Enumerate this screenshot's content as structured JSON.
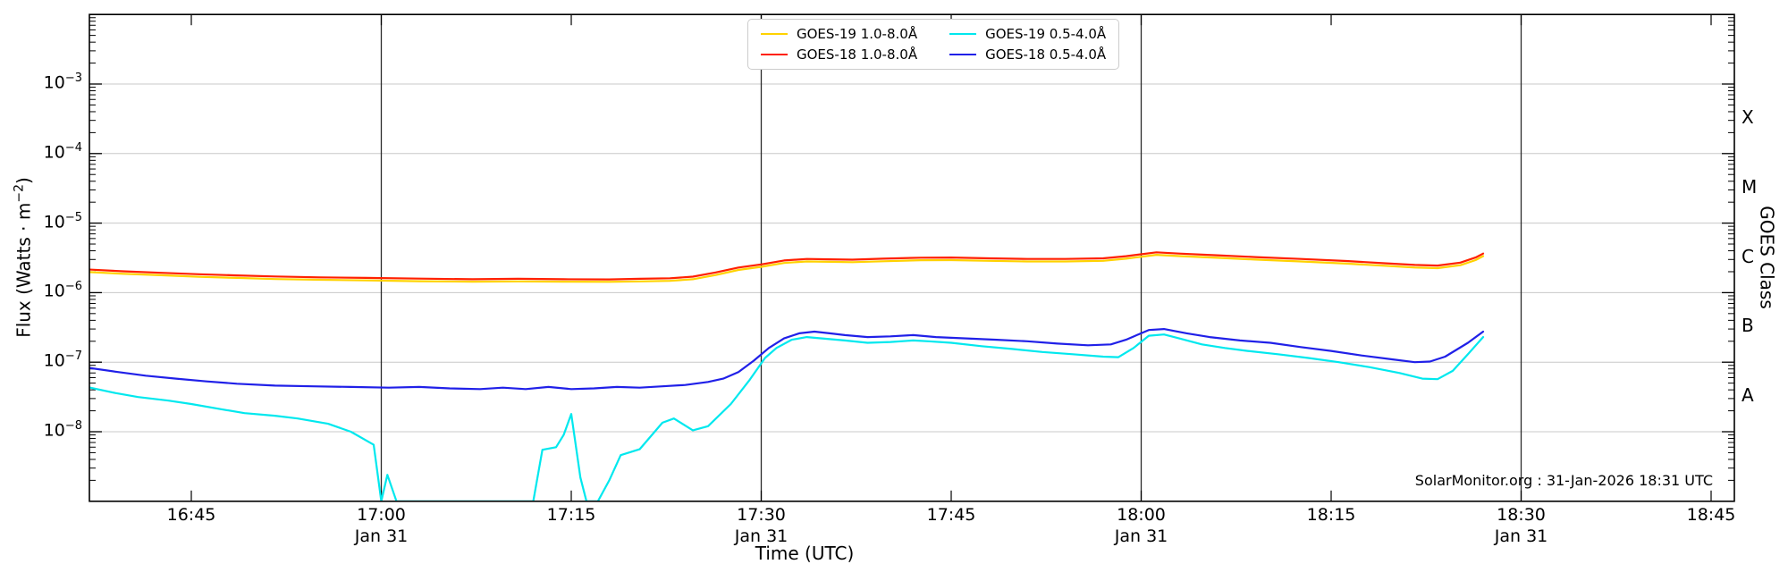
{
  "watermark": "SolarMonitor.org : 31-Jan-2026 18:31 UTC",
  "chart_data": {
    "type": "line",
    "title": "",
    "xlabel": "Time (UTC)",
    "ylabel": {
      "prefix": "Flux (Watts · m",
      "sup": "−2",
      "suffix": ")"
    },
    "ylabel_right": "GOES Class",
    "x_axis": {
      "unit": "UTC time, decimal hours",
      "min": 16.6159,
      "max": 18.7806,
      "ticks": [
        {
          "t": 16.75,
          "label": "16:45"
        },
        {
          "t": 17.0,
          "label": "17:00",
          "sub": "Jan 31"
        },
        {
          "t": 17.25,
          "label": "17:15"
        },
        {
          "t": 17.5,
          "label": "17:30",
          "sub": "Jan 31"
        },
        {
          "t": 17.75,
          "label": "17:45"
        },
        {
          "t": 18.0,
          "label": "18:00",
          "sub": "Jan 31"
        },
        {
          "t": 18.25,
          "label": "18:15"
        },
        {
          "t": 18.5,
          "label": "18:30",
          "sub": "Jan 31"
        },
        {
          "t": 18.75,
          "label": "18:45"
        }
      ]
    },
    "y_axis": {
      "scale": "log",
      "min": 1e-09,
      "max": 0.01,
      "tick_exponents": [
        -3,
        -4,
        -5,
        -6,
        -7,
        -8
      ],
      "grid": true
    },
    "right_axis": {
      "label": "GOES Class",
      "classes": [
        {
          "label": "X",
          "exp": -3.5
        },
        {
          "label": "M",
          "exp": -4.5
        },
        {
          "label": "C",
          "exp": -5.5
        },
        {
          "label": "B",
          "exp": -6.5
        },
        {
          "label": "A",
          "exp": -7.5
        }
      ]
    },
    "day_markers": {
      "times": [
        17.0,
        17.5,
        18.0,
        18.5
      ],
      "label": "Jan 31"
    },
    "colors": {
      "grid": "#c8c8c8",
      "day_marker": "#2b2b2b",
      "axis": "#000000"
    },
    "legend_position": "top-center",
    "series": [
      {
        "id": "goes19-long",
        "label": "GOES-19 1.0-8.0Å",
        "color": "#ffd200",
        "points": [
          [
            16.615,
            1.98e-06
          ],
          [
            16.66,
            1.87e-06
          ],
          [
            16.71,
            1.78e-06
          ],
          [
            16.76,
            1.69e-06
          ],
          [
            16.81,
            1.63e-06
          ],
          [
            16.86,
            1.57e-06
          ],
          [
            16.92,
            1.53e-06
          ],
          [
            16.98,
            1.5e-06
          ],
          [
            17.05,
            1.46e-06
          ],
          [
            17.12,
            1.44e-06
          ],
          [
            17.18,
            1.45e-06
          ],
          [
            17.24,
            1.44e-06
          ],
          [
            17.3,
            1.43e-06
          ],
          [
            17.34,
            1.45e-06
          ],
          [
            17.38,
            1.48e-06
          ],
          [
            17.41,
            1.56e-06
          ],
          [
            17.44,
            1.79e-06
          ],
          [
            17.47,
            2.12e-06
          ],
          [
            17.5,
            2.35e-06
          ],
          [
            17.53,
            2.67e-06
          ],
          [
            17.56,
            2.81e-06
          ],
          [
            17.59,
            2.78e-06
          ],
          [
            17.62,
            2.74e-06
          ],
          [
            17.66,
            2.83e-06
          ],
          [
            17.71,
            2.93e-06
          ],
          [
            17.75,
            2.94e-06
          ],
          [
            17.8,
            2.87e-06
          ],
          [
            17.85,
            2.81e-06
          ],
          [
            17.9,
            2.81e-06
          ],
          [
            17.95,
            2.87e-06
          ],
          [
            17.98,
            3.08e-06
          ],
          [
            18.02,
            3.5e-06
          ],
          [
            18.05,
            3.36e-06
          ],
          [
            18.1,
            3.17e-06
          ],
          [
            18.15,
            2.99e-06
          ],
          [
            18.21,
            2.81e-06
          ],
          [
            18.27,
            2.62e-06
          ],
          [
            18.32,
            2.44e-06
          ],
          [
            18.36,
            2.3e-06
          ],
          [
            18.39,
            2.25e-06
          ],
          [
            18.42,
            2.48e-06
          ],
          [
            18.44,
            2.94e-06
          ],
          [
            18.45,
            3.36e-06
          ]
        ]
      },
      {
        "id": "goes18-long",
        "label": "GOES-18 1.0-8.0Å",
        "color": "#ff2000",
        "points": [
          [
            16.615,
            2.15e-06
          ],
          [
            16.66,
            2.03e-06
          ],
          [
            16.71,
            1.93e-06
          ],
          [
            16.76,
            1.84e-06
          ],
          [
            16.81,
            1.77e-06
          ],
          [
            16.86,
            1.71e-06
          ],
          [
            16.92,
            1.66e-06
          ],
          [
            16.98,
            1.63e-06
          ],
          [
            17.05,
            1.59e-06
          ],
          [
            17.12,
            1.56e-06
          ],
          [
            17.18,
            1.58e-06
          ],
          [
            17.24,
            1.56e-06
          ],
          [
            17.3,
            1.55e-06
          ],
          [
            17.34,
            1.58e-06
          ],
          [
            17.38,
            1.61e-06
          ],
          [
            17.41,
            1.7e-06
          ],
          [
            17.44,
            1.95e-06
          ],
          [
            17.47,
            2.3e-06
          ],
          [
            17.5,
            2.55e-06
          ],
          [
            17.53,
            2.9e-06
          ],
          [
            17.56,
            3.05e-06
          ],
          [
            17.59,
            3.02e-06
          ],
          [
            17.62,
            2.98e-06
          ],
          [
            17.66,
            3.08e-06
          ],
          [
            17.71,
            3.18e-06
          ],
          [
            17.75,
            3.2e-06
          ],
          [
            17.8,
            3.12e-06
          ],
          [
            17.85,
            3.05e-06
          ],
          [
            17.9,
            3.05e-06
          ],
          [
            17.95,
            3.12e-06
          ],
          [
            17.98,
            3.35e-06
          ],
          [
            18.02,
            3.8e-06
          ],
          [
            18.05,
            3.65e-06
          ],
          [
            18.1,
            3.45e-06
          ],
          [
            18.15,
            3.25e-06
          ],
          [
            18.21,
            3.05e-06
          ],
          [
            18.27,
            2.85e-06
          ],
          [
            18.32,
            2.65e-06
          ],
          [
            18.36,
            2.5e-06
          ],
          [
            18.39,
            2.45e-06
          ],
          [
            18.42,
            2.7e-06
          ],
          [
            18.44,
            3.2e-06
          ],
          [
            18.45,
            3.65e-06
          ]
        ]
      },
      {
        "id": "goes19-short",
        "label": "GOES-19 0.5-4.0Å",
        "color": "#00e8ee",
        "points": [
          [
            16.615,
            4.35e-08
          ],
          [
            16.65,
            3.6e-08
          ],
          [
            16.68,
            3.15e-08
          ],
          [
            16.72,
            2.8e-08
          ],
          [
            16.75,
            2.5e-08
          ],
          [
            16.79,
            2.1e-08
          ],
          [
            16.82,
            1.85e-08
          ],
          [
            16.86,
            1.7e-08
          ],
          [
            16.89,
            1.55e-08
          ],
          [
            16.93,
            1.3e-08
          ],
          [
            16.96,
            1e-08
          ],
          [
            16.99,
            6.5e-09
          ],
          [
            17.0,
            1e-09
          ],
          [
            17.008,
            2.4e-09
          ],
          [
            17.02,
            1e-09
          ],
          [
            17.06,
            1e-09
          ],
          [
            17.12,
            1e-09
          ],
          [
            17.2,
            1e-09
          ],
          [
            17.212,
            5.5e-09
          ],
          [
            17.23,
            6e-09
          ],
          [
            17.24,
            9e-09
          ],
          [
            17.25,
            1.8e-08
          ],
          [
            17.262,
            2.2e-09
          ],
          [
            17.27,
            1e-09
          ],
          [
            17.285,
            1e-09
          ],
          [
            17.3,
            2e-09
          ],
          [
            17.315,
            4.6e-09
          ],
          [
            17.34,
            5.6e-09
          ],
          [
            17.37,
            1.35e-08
          ],
          [
            17.385,
            1.55e-08
          ],
          [
            17.41,
            1.05e-08
          ],
          [
            17.43,
            1.2e-08
          ],
          [
            17.46,
            2.5e-08
          ],
          [
            17.485,
            5.6e-08
          ],
          [
            17.505,
            1.15e-07
          ],
          [
            17.52,
            1.6e-07
          ],
          [
            17.54,
            2.1e-07
          ],
          [
            17.56,
            2.3e-07
          ],
          [
            17.58,
            2.2e-07
          ],
          [
            17.61,
            2.05e-07
          ],
          [
            17.64,
            1.9e-07
          ],
          [
            17.67,
            1.95e-07
          ],
          [
            17.7,
            2.05e-07
          ],
          [
            17.72,
            2e-07
          ],
          [
            17.75,
            1.9e-07
          ],
          [
            17.79,
            1.7e-07
          ],
          [
            17.83,
            1.55e-07
          ],
          [
            17.87,
            1.4e-07
          ],
          [
            17.91,
            1.3e-07
          ],
          [
            17.95,
            1.2e-07
          ],
          [
            17.97,
            1.18e-07
          ],
          [
            17.99,
            1.6e-07
          ],
          [
            18.01,
            2.4e-07
          ],
          [
            18.03,
            2.5e-07
          ],
          [
            18.05,
            2.2e-07
          ],
          [
            18.08,
            1.8e-07
          ],
          [
            18.11,
            1.6e-07
          ],
          [
            18.14,
            1.45e-07
          ],
          [
            18.18,
            1.3e-07
          ],
          [
            18.22,
            1.15e-07
          ],
          [
            18.26,
            1e-07
          ],
          [
            18.3,
            8.5e-08
          ],
          [
            18.34,
            7e-08
          ],
          [
            18.37,
            5.8e-08
          ],
          [
            18.39,
            5.7e-08
          ],
          [
            18.41,
            7.5e-08
          ],
          [
            18.43,
            1.3e-07
          ],
          [
            18.45,
            2.3e-07
          ]
        ]
      },
      {
        "id": "goes18-short",
        "label": "GOES-18 0.5-4.0Å",
        "color": "#2020e8",
        "points": [
          [
            16.615,
            8.3e-08
          ],
          [
            16.65,
            7.3e-08
          ],
          [
            16.69,
            6.4e-08
          ],
          [
            16.73,
            5.8e-08
          ],
          [
            16.77,
            5.3e-08
          ],
          [
            16.81,
            4.9e-08
          ],
          [
            16.86,
            4.6e-08
          ],
          [
            16.91,
            4.5e-08
          ],
          [
            16.96,
            4.4e-08
          ],
          [
            17.01,
            4.3e-08
          ],
          [
            17.05,
            4.4e-08
          ],
          [
            17.09,
            4.2e-08
          ],
          [
            17.13,
            4.1e-08
          ],
          [
            17.16,
            4.3e-08
          ],
          [
            17.19,
            4.1e-08
          ],
          [
            17.22,
            4.4e-08
          ],
          [
            17.25,
            4.1e-08
          ],
          [
            17.28,
            4.2e-08
          ],
          [
            17.31,
            4.4e-08
          ],
          [
            17.34,
            4.3e-08
          ],
          [
            17.37,
            4.5e-08
          ],
          [
            17.4,
            4.7e-08
          ],
          [
            17.43,
            5.2e-08
          ],
          [
            17.45,
            5.8e-08
          ],
          [
            17.47,
            7.2e-08
          ],
          [
            17.49,
            1.05e-07
          ],
          [
            17.51,
            1.6e-07
          ],
          [
            17.53,
            2.2e-07
          ],
          [
            17.55,
            2.6e-07
          ],
          [
            17.57,
            2.75e-07
          ],
          [
            17.59,
            2.6e-07
          ],
          [
            17.61,
            2.45e-07
          ],
          [
            17.64,
            2.3e-07
          ],
          [
            17.67,
            2.35e-07
          ],
          [
            17.7,
            2.45e-07
          ],
          [
            17.73,
            2.3e-07
          ],
          [
            17.77,
            2.2e-07
          ],
          [
            17.81,
            2.1e-07
          ],
          [
            17.85,
            2e-07
          ],
          [
            17.89,
            1.85e-07
          ],
          [
            17.93,
            1.75e-07
          ],
          [
            17.96,
            1.8e-07
          ],
          [
            17.98,
            2.1e-07
          ],
          [
            18.01,
            2.9e-07
          ],
          [
            18.03,
            3e-07
          ],
          [
            18.06,
            2.6e-07
          ],
          [
            18.09,
            2.3e-07
          ],
          [
            18.13,
            2.05e-07
          ],
          [
            18.17,
            1.9e-07
          ],
          [
            18.21,
            1.65e-07
          ],
          [
            18.25,
            1.45e-07
          ],
          [
            18.29,
            1.25e-07
          ],
          [
            18.33,
            1.1e-07
          ],
          [
            18.36,
            1e-07
          ],
          [
            18.38,
            1.02e-07
          ],
          [
            18.4,
            1.2e-07
          ],
          [
            18.43,
            1.9e-07
          ],
          [
            18.45,
            2.75e-07
          ]
        ]
      }
    ]
  }
}
